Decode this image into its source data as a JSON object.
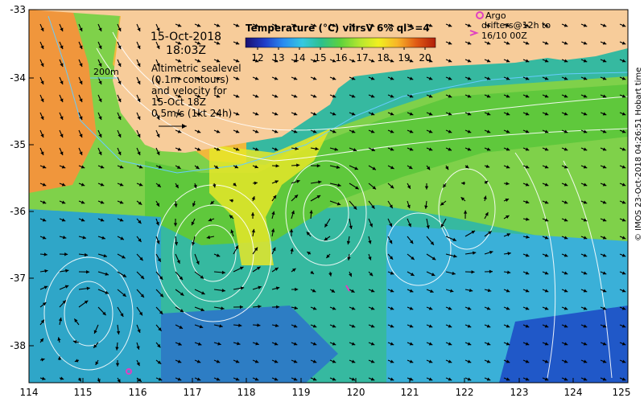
{
  "map": {
    "date": "15-Oct-2018",
    "time": "18:03Z",
    "altimetry_note": [
      "Altimetric sealevel",
      "(0.1m contours)",
      "and velocity for",
      "15-Oct 18Z",
      "0.5m/s (1kt 24h)"
    ],
    "depth_contour_label": "200m",
    "credit": "© IMOS 23-Oct-2018 04:26:51 Hobart time",
    "colors": {
      "land": "#f7cc9a",
      "contour": "#ffffff",
      "vector": "#000000",
      "argo": "#e040c0",
      "isobath": "#66ccff"
    }
  },
  "legend": {
    "title": "Temperature (°C) viirsV 6% ql>=4",
    "ticks": [
      "12",
      "13",
      "14",
      "15",
      "16",
      "17",
      "18",
      "19",
      "20"
    ],
    "colorscale": [
      "#1a1070",
      "#1f3cc8",
      "#2a8cf0",
      "#34c8e0",
      "#2cc08c",
      "#5ed23c",
      "#b4e630",
      "#f0f020",
      "#f8b428",
      "#e05a14",
      "#b01e0a"
    ]
  },
  "markers": {
    "argo_label": "Argo",
    "drifter_lines": [
      "drifters@12h to",
      "16/10 00Z"
    ]
  },
  "axes": {
    "lat_ticks": [
      "-33",
      "-34",
      "-35",
      "-36",
      "-37",
      "-38"
    ],
    "lon_ticks": [
      "114",
      "115",
      "116",
      "117",
      "118",
      "119",
      "120",
      "121",
      "122",
      "123",
      "124",
      "125"
    ]
  }
}
